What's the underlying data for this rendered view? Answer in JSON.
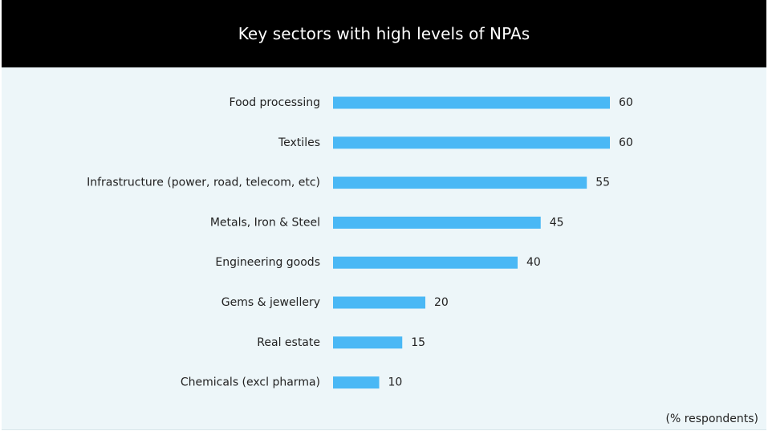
{
  "header": {
    "title": "Key sectors with high levels of NPAs"
  },
  "footnote": "(% respondents)",
  "colors": {
    "title_bg": "#000000",
    "title_text": "#ffffff",
    "plot_bg": "#edf6f9",
    "bar": "#4ab8f5",
    "text": "#222222"
  },
  "chart_data": {
    "type": "bar",
    "orientation": "horizontal",
    "title": "Key sectors with high levels of NPAs",
    "categories": [
      "Food processing",
      "Textiles",
      "Infrastructure (power, road, telecom, etc)",
      "Metals, Iron & Steel",
      "Engineering goods",
      "Gems & jewellery",
      "Real estate",
      "Chemicals (excl pharma)"
    ],
    "values": [
      60,
      60,
      55,
      45,
      40,
      20,
      15,
      10
    ],
    "unit": "(% respondents)",
    "xlim": [
      0,
      60
    ],
    "grid": false,
    "legend": "none",
    "data_labels": true
  }
}
